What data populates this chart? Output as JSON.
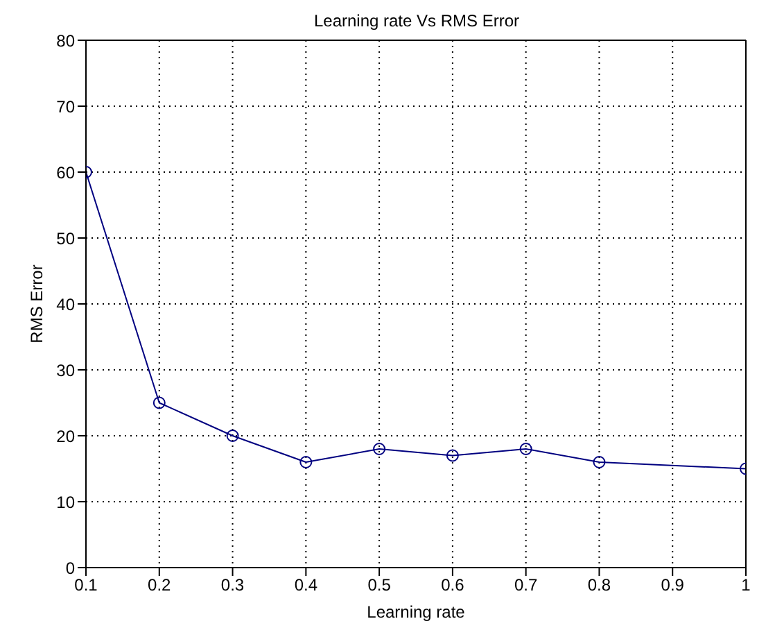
{
  "chart_data": {
    "type": "line",
    "title": "Learning rate Vs RMS Error",
    "xlabel": "Learning rate",
    "ylabel": "RMS Error",
    "x": [
      0.1,
      0.2,
      0.3,
      0.4,
      0.5,
      0.6,
      0.7,
      0.8,
      1
    ],
    "series": [
      {
        "color": "#000080",
        "values": [
          60,
          25,
          20,
          16,
          18,
          17,
          18,
          16,
          15
        ]
      }
    ],
    "xlim": [
      0.1,
      1
    ],
    "xticks": [
      0.1,
      0.2,
      0.3,
      0.4,
      0.5,
      0.6,
      0.7,
      0.8,
      0.9,
      1
    ],
    "ylim": [
      0,
      80
    ],
    "yticks": [
      0,
      10,
      20,
      30,
      40,
      50,
      60,
      70,
      80
    ],
    "grid": true,
    "marker": "circle",
    "line_style": "solid",
    "legend": false
  }
}
